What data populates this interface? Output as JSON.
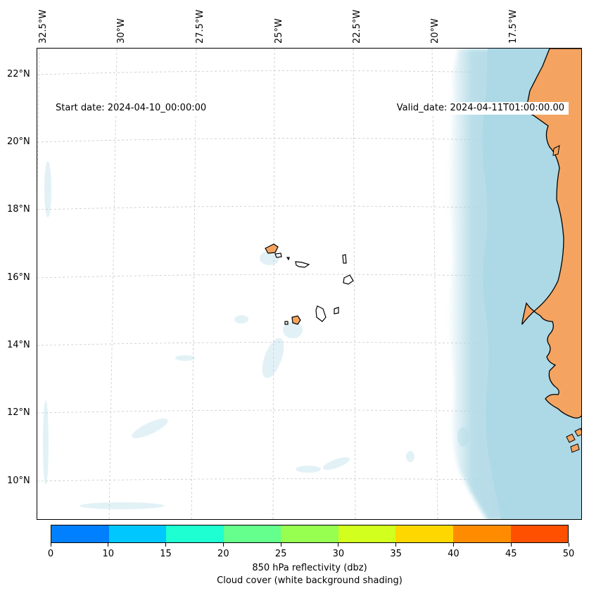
{
  "map": {
    "start_date_label": "Start date: 2024-04-10_00:00:00",
    "valid_date_label": "Valid_date: 2024-04-11T01:00:00.00",
    "longitude_labels": [
      "32.5°W",
      "30°W",
      "27.5°W",
      "25°W",
      "22.5°W",
      "20°W",
      "17.5°W"
    ],
    "latitude_labels": [
      "22°N",
      "20°N",
      "18°N",
      "16°N",
      "14°N",
      "12°N",
      "10°N"
    ],
    "colors": {
      "land": "#f4a460",
      "cloud": "#add8e6",
      "gridline": "#c8c8c8",
      "coastline": "#000000"
    }
  },
  "colorbar": {
    "ticks": [
      "0",
      "10",
      "15",
      "20",
      "25",
      "30",
      "35",
      "40",
      "45",
      "50"
    ],
    "colors": [
      "#0080ff",
      "#00c8ff",
      "#1effd2",
      "#64ff8c",
      "#96ff50",
      "#d2ff1e",
      "#ffd700",
      "#ff8c00",
      "#ff5000"
    ],
    "label_line1": "850 hPa reflectivity (dbz)",
    "label_line2": "Cloud cover (white background shading)"
  }
}
